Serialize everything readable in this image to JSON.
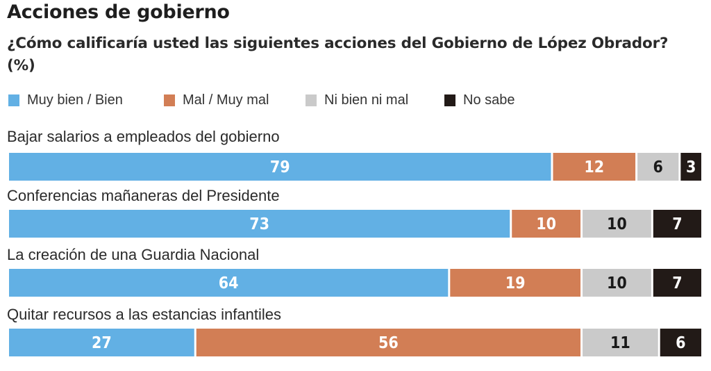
{
  "title": "Acciones de gobierno",
  "subtitle": "¿Cómo calificaría usted las siguientes acciones del Gobierno de López Obrador? (%)",
  "chart_data": {
    "type": "bar",
    "orientation": "horizontal",
    "stacked": true,
    "title": "Acciones de gobierno",
    "subtitle": "¿Cómo calificaría usted las siguientes acciones del Gobierno de López Obrador? (%)",
    "xlabel": "",
    "ylabel": "",
    "xlim": [
      0,
      100
    ],
    "grid": false,
    "legend_position": "top-left",
    "categories": [
      "Bajar salarios a empleados del gobierno",
      "Conferencias mañaneras del Presidente",
      "La creación de una Guardia Nacional",
      "Quitar recursos a las estancias infantiles"
    ],
    "series": [
      {
        "name": "Muy bien / Bien",
        "color": "#62b0e4",
        "label_color": "#ffffff",
        "values": [
          79,
          73,
          64,
          27
        ]
      },
      {
        "name": "Mal / Muy mal",
        "color": "#d27e55",
        "label_color": "#ffffff",
        "values": [
          12,
          10,
          19,
          56
        ]
      },
      {
        "name": "Ni bien ni mal",
        "color": "#cacaca",
        "label_color": "#1a1a1a",
        "values": [
          6,
          10,
          10,
          11
        ]
      },
      {
        "name": "No sabe",
        "color": "#221a17",
        "label_color": "#ffffff",
        "values": [
          3,
          7,
          7,
          6
        ]
      }
    ]
  }
}
